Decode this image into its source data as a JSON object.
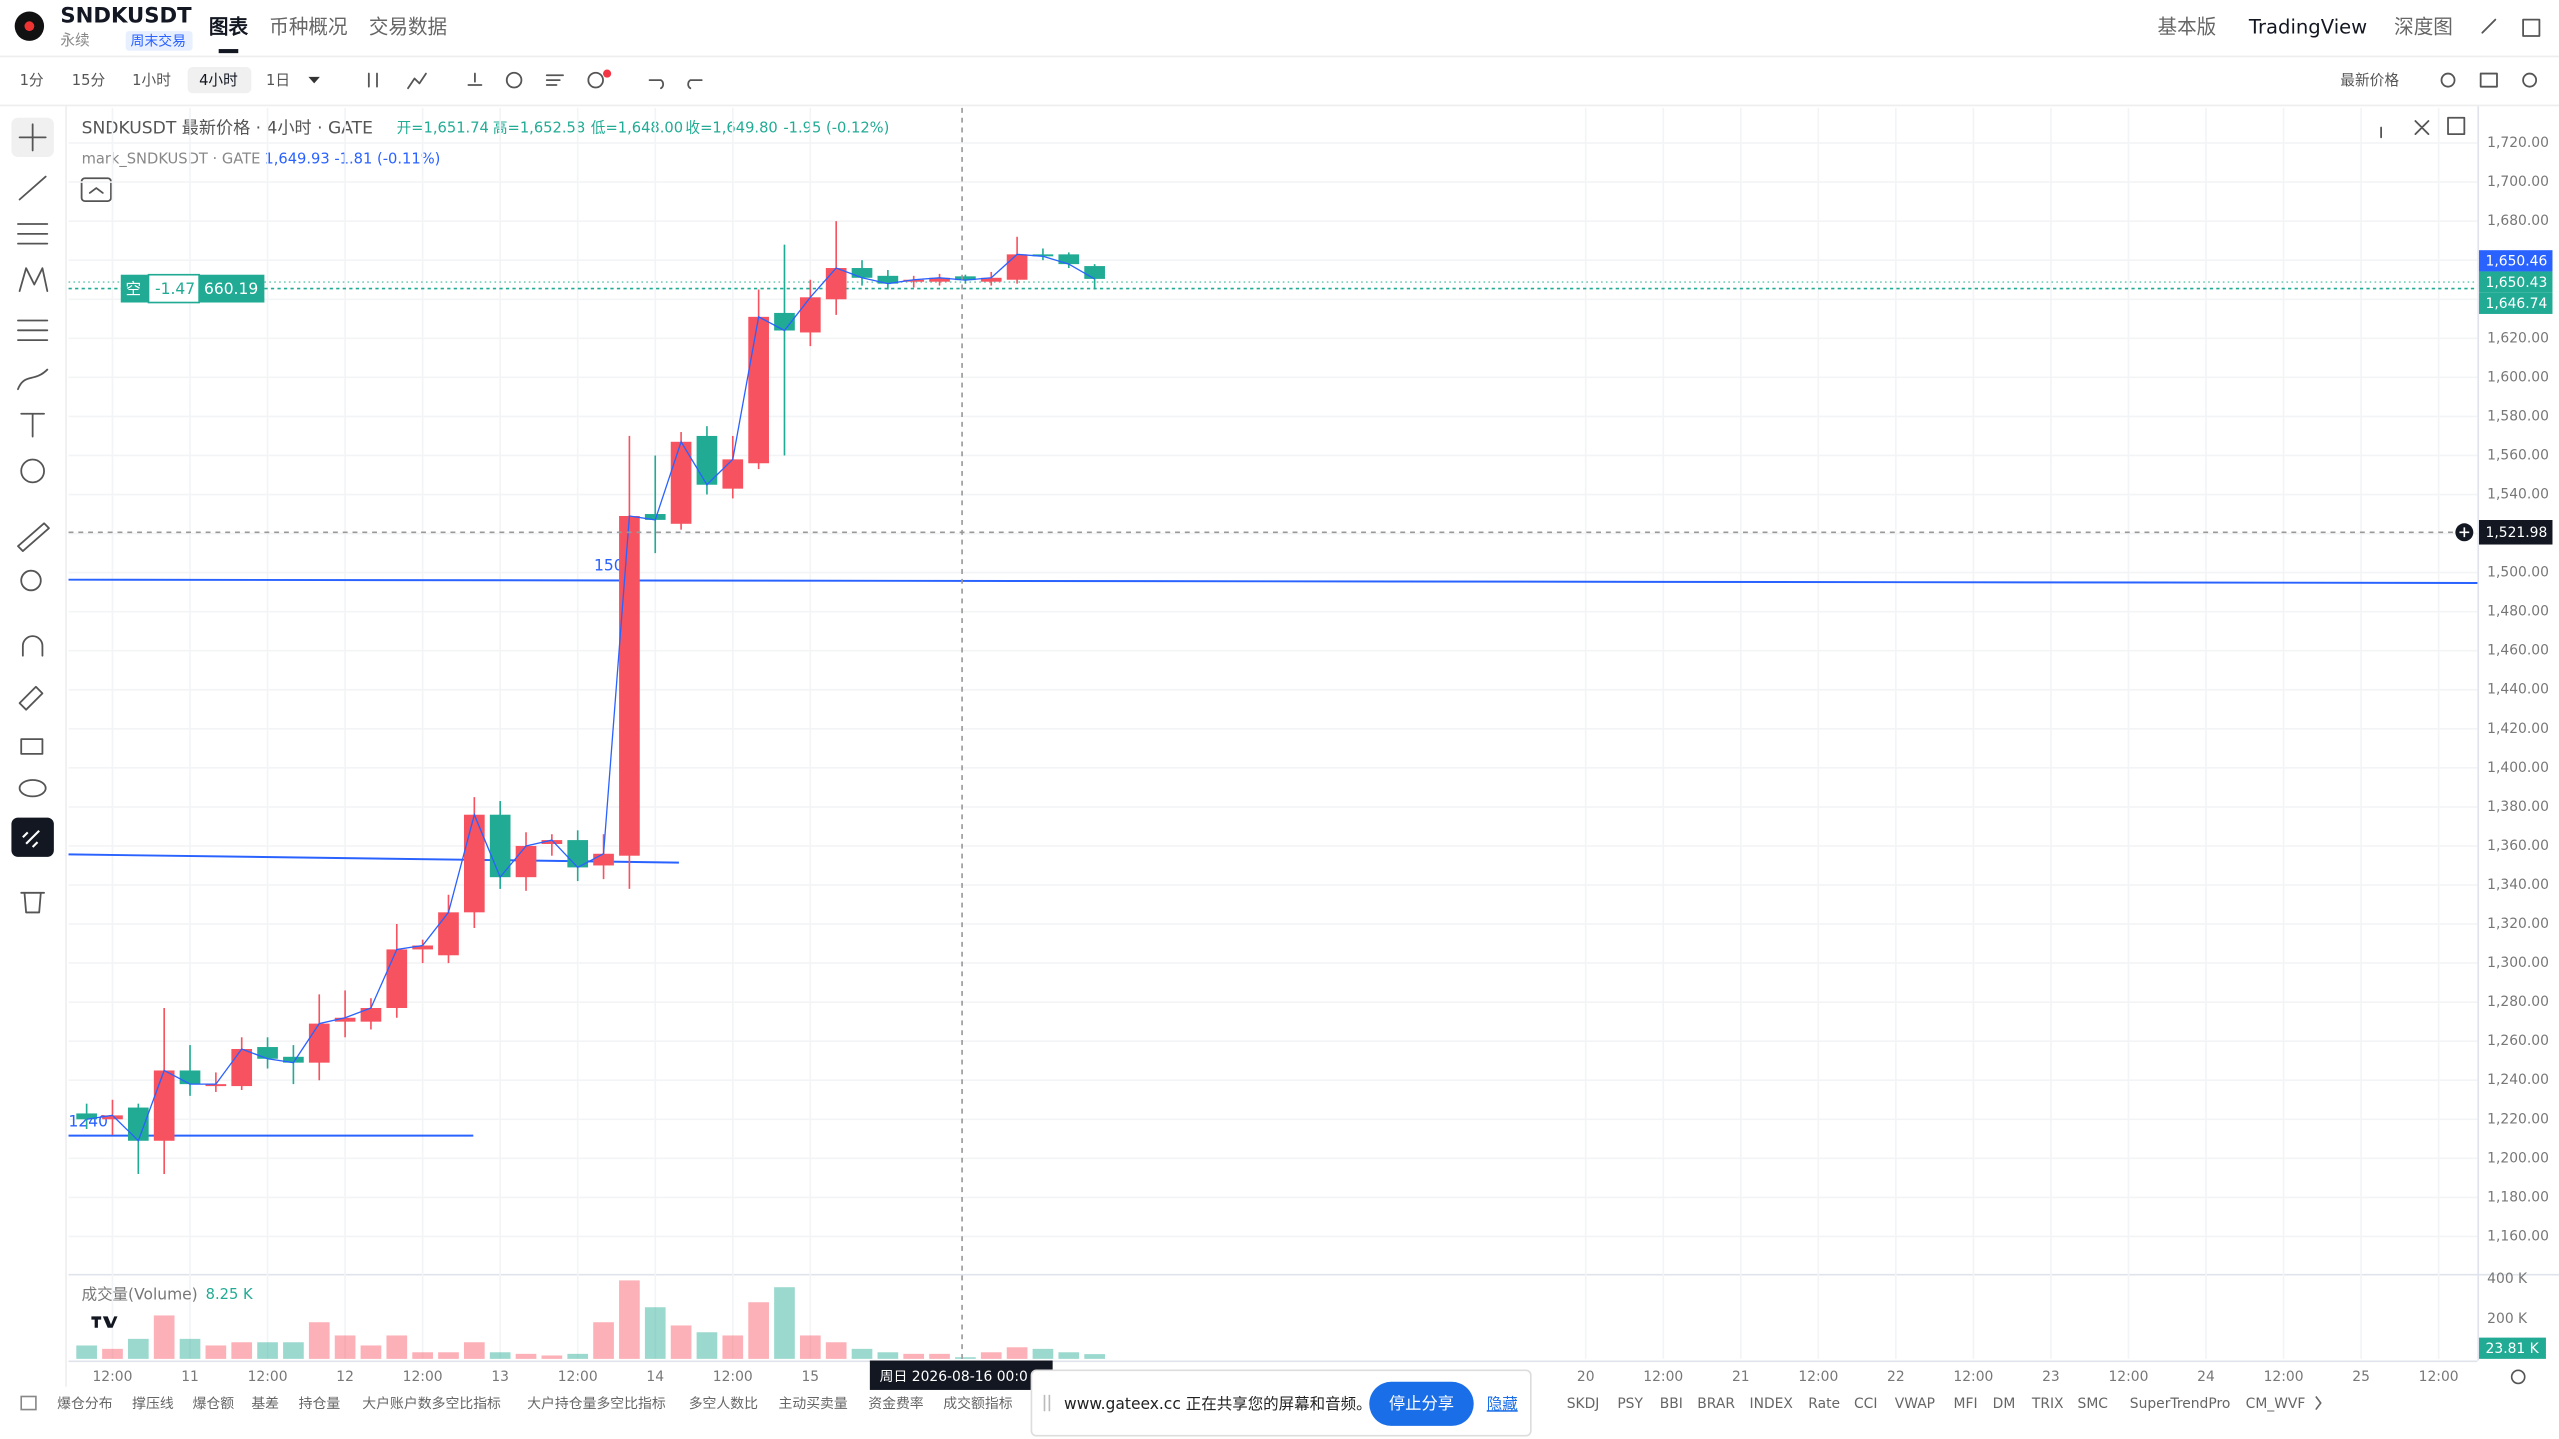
{
  "header": {
    "symbol": "SNDKUSDT",
    "contract": "永续",
    "badge": "周末交易",
    "tabs": [
      "图表",
      "币种概况",
      "交易数据"
    ],
    "views": [
      "基本版",
      "TradingView",
      "深度图"
    ]
  },
  "toolbar": {
    "intervals": [
      "1分",
      "15分",
      "1小时",
      "4小时",
      "1日"
    ],
    "price_source": "最新价格"
  },
  "legend": {
    "title": "SNDKUSDT 最新价格 · 4小时 · GATE",
    "ohlc": [
      "开=1,651.74",
      "高=1,652.58",
      "低=1,648.00",
      "收=1,649.80"
    ],
    "change": "-1.95 (-0.12%)",
    "mark_title": "mark_SNDKUSDT · GATE",
    "mark_values": "1,649.93  -1.81 (-0.11%)"
  },
  "position": {
    "side": "空",
    "pnl": "-1.47",
    "amount": "660.19"
  },
  "drawing_labels": [
    "150",
    "1240"
  ],
  "price_tags": [
    {
      "label": "1,650.46",
      "color": "#2962ff"
    },
    {
      "label": "1,650.43",
      "color": "#22ab94"
    },
    {
      "label": "1,646.74",
      "color": "#22ab94"
    },
    {
      "label": "1,521.98",
      "color": "#131722"
    }
  ],
  "crosshair_time": "周日 2026-08-16  00:0",
  "chart_data": [
    {
      "type": "candlestick",
      "up_color": "#f7525f",
      "down_color": "#22ab94",
      "grid": true,
      "open": [
        1223,
        1220,
        1226,
        1209,
        1245,
        1237,
        1237,
        1257,
        1252,
        1249,
        1270,
        1270,
        1277,
        1307,
        1304,
        1326,
        1376,
        1344,
        1361,
        1363,
        1350,
        1355,
        1530,
        1525,
        1570,
        1543,
        1556,
        1633,
        1623,
        1640,
        1656,
        1652,
        1649,
        1649,
        1651.74,
        1649,
        1650,
        1663,
        1663,
        1657
      ],
      "high": [
        1228,
        1230,
        1228,
        1277,
        1258,
        1244,
        1262,
        1262,
        1258,
        1284,
        1286,
        1282,
        1320,
        1312,
        1335,
        1385,
        1383,
        1367,
        1366,
        1368,
        1366,
        1570,
        1560,
        1572,
        1575,
        1570,
        1645,
        1668,
        1650,
        1680,
        1660,
        1655,
        1652,
        1653,
        1652.58,
        1654,
        1672,
        1666,
        1664,
        1658
      ],
      "low": [
        1215,
        1212,
        1192,
        1192,
        1232,
        1234,
        1235,
        1246,
        1238,
        1240,
        1262,
        1266,
        1272,
        1300,
        1300,
        1318,
        1338,
        1337,
        1355,
        1342,
        1343,
        1338,
        1510,
        1522,
        1540,
        1538,
        1553,
        1560,
        1616,
        1632,
        1647,
        1645,
        1646,
        1647,
        1648,
        1647,
        1648,
        1660,
        1656,
        1645
      ],
      "close": [
        1220,
        1222,
        1209,
        1245,
        1238,
        1238,
        1256,
        1251,
        1249,
        1269,
        1272,
        1277,
        1307,
        1309,
        1326,
        1376,
        1344,
        1360,
        1363,
        1349,
        1356,
        1529,
        1527,
        1567,
        1545,
        1558,
        1631,
        1624,
        1641,
        1656,
        1651,
        1648,
        1650,
        1651,
        1649.8,
        1651,
        1663,
        1662,
        1658,
        1650.43
      ],
      "xlim": [
        -0.7,
        92.5
      ],
      "xticks": [
        {
          "value": 1,
          "label": "12:00"
        },
        {
          "value": 4,
          "label": "11"
        },
        {
          "value": 7,
          "label": "12:00"
        },
        {
          "value": 10,
          "label": "12"
        },
        {
          "value": 13,
          "label": "12:00"
        },
        {
          "value": 16,
          "label": "13"
        },
        {
          "value": 19,
          "label": "12:00"
        },
        {
          "value": 22,
          "label": "14"
        },
        {
          "value": 25,
          "label": "12:00"
        },
        {
          "value": 28,
          "label": "15"
        },
        {
          "value": 58,
          "label": "20"
        },
        {
          "value": 61,
          "label": "12:00"
        },
        {
          "value": 64,
          "label": "21"
        },
        {
          "value": 67,
          "label": "12:00"
        },
        {
          "value": 70,
          "label": "22"
        },
        {
          "value": 73,
          "label": "12:00"
        },
        {
          "value": 76,
          "label": "23"
        },
        {
          "value": 79,
          "label": "12:00"
        },
        {
          "value": 82,
          "label": "24"
        },
        {
          "value": 85,
          "label": "12:00"
        },
        {
          "value": 88,
          "label": "25"
        },
        {
          "value": 91,
          "label": "12:00"
        }
      ],
      "ylim": [
        1140,
        1738
      ],
      "yticks": [
        {
          "value": 1720,
          "label": "1,720.00"
        },
        {
          "value": 1700,
          "label": "1,700.00"
        },
        {
          "value": 1680,
          "label": "1,680.00"
        },
        {
          "value": 1660,
          "label": "1,660.00"
        },
        {
          "value": 1640,
          "label": "1,640.00"
        },
        {
          "value": 1620,
          "label": "1,620.00"
        },
        {
          "value": 1600,
          "label": "1,600.00"
        },
        {
          "value": 1580,
          "label": "1,580.00"
        },
        {
          "value": 1560,
          "label": "1,560.00"
        },
        {
          "value": 1540,
          "label": "1,540.00"
        },
        {
          "value": 1520,
          "label": "1,520.00"
        },
        {
          "value": 1500,
          "label": "1,500.00"
        },
        {
          "value": 1480,
          "label": "1,480.00"
        },
        {
          "value": 1460,
          "label": "1,460.00"
        },
        {
          "value": 1440,
          "label": "1,440.00"
        },
        {
          "value": 1420,
          "label": "1,420.00"
        },
        {
          "value": 1400,
          "label": "1,400.00"
        },
        {
          "value": 1380,
          "label": "1,380.00"
        },
        {
          "value": 1360,
          "label": "1,360.00"
        },
        {
          "value": 1340,
          "label": "1,340.00"
        },
        {
          "value": 1320,
          "label": "1,320.00"
        },
        {
          "value": 1300,
          "label": "1,300.00"
        },
        {
          "value": 1280,
          "label": "1,280.00"
        },
        {
          "value": 1260,
          "label": "1,260.00"
        },
        {
          "value": 1240,
          "label": "1,240.00"
        },
        {
          "value": 1220,
          "label": "1,220.00"
        },
        {
          "value": 1200,
          "label": "1,200.00"
        },
        {
          "value": 1180,
          "label": "1,180.00"
        },
        {
          "value": 1160,
          "label": "1,160.00"
        }
      ]
    },
    {
      "type": "bar",
      "title": "成交量(Volume)",
      "legend_value": "8.25 K",
      "last_label": "23.81 K",
      "values": [
        67,
        50,
        100,
        217,
        100,
        67,
        83,
        83,
        83,
        183,
        117,
        67,
        117,
        33,
        33,
        83,
        33,
        25,
        17,
        25,
        183,
        392,
        258,
        167,
        133,
        117,
        283,
        358,
        117,
        83,
        50,
        33,
        25,
        25,
        8.25,
        33,
        58,
        50,
        33,
        23.81
      ],
      "ylim": [
        0,
        433
      ],
      "yticks": [
        {
          "value": 400,
          "label": "400 K"
        },
        {
          "value": 200,
          "label": "200 K"
        }
      ]
    }
  ],
  "indicator_tabs": [
    "爆仓分布",
    "撑压线",
    "爆仓额",
    "基差",
    "持仓量",
    "大户账户数多空比指标",
    "大户持仓量多空比指标",
    "多空人数比",
    "主动买卖量",
    "资金费率",
    "成交额指标",
    "SKDJ",
    "PSY",
    "BBI",
    "BRAR",
    "INDEX",
    "Rate",
    "CCI",
    "VWAP",
    "MFI",
    "DM",
    "TRIX",
    "SMC",
    "SuperTrendPro",
    "CM_WVF"
  ],
  "share_bar": {
    "message": "www.gateex.cc 正在共享您的屏幕和音频。",
    "stop": "停止分享",
    "hide": "隐藏"
  }
}
